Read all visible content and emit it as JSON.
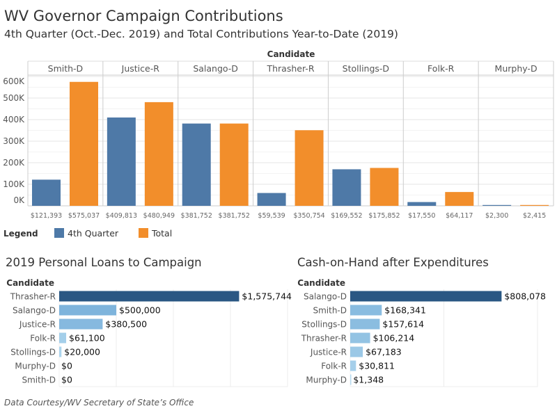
{
  "title": "WV Governor Campaign Contributions",
  "subtitle": "4th Quarter (Oct.-Dec. 2019) and Total Contributions Year-to-Date (2019)",
  "footer": "Data Courtesy/WV Secretary of State’s Office",
  "colors": {
    "quarter": "#4e79a7",
    "total": "#f28e2b",
    "seq_light": "#b9ddf1",
    "seq_dark": "#2a5783"
  },
  "chart_data": [
    {
      "type": "bar",
      "column_header": "Candidate",
      "categories": [
        "Smith-D",
        "Justice-R",
        "Salango-D",
        "Thrasher-R",
        "Stollings-D",
        "Folk-R",
        "Murphy-D"
      ],
      "series": [
        {
          "name": "4th Quarter",
          "values": [
            121393,
            409813,
            381752,
            59539,
            169552,
            17550,
            2300
          ],
          "labels": [
            "$121,393",
            "$409,813",
            "$381,752",
            "$59,539",
            "$169,552",
            "$17,550",
            "$2,300"
          ]
        },
        {
          "name": "Total",
          "values": [
            575037,
            480949,
            381752,
            350754,
            175852,
            64117,
            2415
          ],
          "labels": [
            "$575,037",
            "$480,949",
            "$381,752",
            "$350,754",
            "$175,852",
            "$64,117",
            "$2,415"
          ]
        }
      ],
      "yticks": [
        "0K",
        "100K",
        "200K",
        "300K",
        "400K",
        "500K",
        "600K"
      ],
      "ylim": [
        0,
        600000
      ],
      "grid": true,
      "legend": {
        "title": "Legend",
        "placement": "bottom-left",
        "entries": [
          "4th Quarter",
          "Total"
        ]
      }
    },
    {
      "type": "bar",
      "orientation": "horizontal",
      "title": "2019 Personal Loans to Campaign",
      "row_header": "Candidate",
      "categories": [
        "Thrasher-R",
        "Salango-D",
        "Justice-R",
        "Folk-R",
        "Stollings-D",
        "Murphy-D",
        "Smith-D"
      ],
      "values": [
        1575744,
        500000,
        380500,
        61100,
        20000,
        0,
        0
      ],
      "labels": [
        "$1,575,744",
        "$500,000",
        "$380,500",
        "$61,100",
        "$20,000",
        "$0",
        "$0"
      ],
      "xlim": [
        0,
        2000000
      ],
      "grid": true
    },
    {
      "type": "bar",
      "orientation": "horizontal",
      "title": "Cash-on-Hand after Expenditures",
      "row_header": "Candidate",
      "categories": [
        "Salango-D",
        "Smith-D",
        "Stollings-D",
        "Thrasher-R",
        "Justice-R",
        "Folk-R",
        "Murphy-D"
      ],
      "values": [
        808078,
        168341,
        157614,
        106214,
        67183,
        30811,
        1348
      ],
      "labels": [
        "$808,078",
        "$168,341",
        "$157,614",
        "$106,214",
        "$67,183",
        "$30,811",
        "$1,348"
      ],
      "xlim": [
        0,
        1000000
      ],
      "grid": true
    }
  ]
}
